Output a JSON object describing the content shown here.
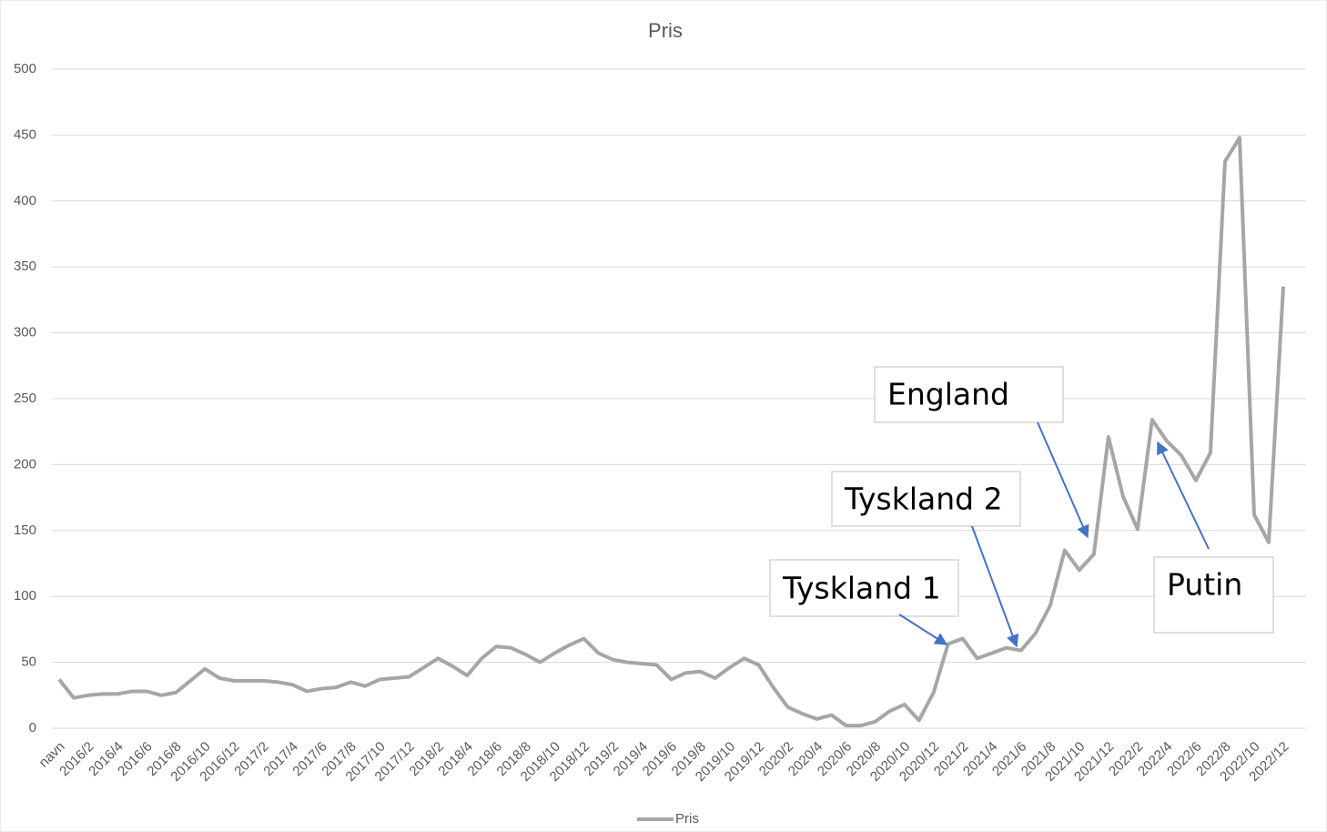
{
  "chart_data": {
    "type": "line",
    "title": "Pris",
    "categories": [
      "navn",
      null,
      "2016/2",
      null,
      "2016/4",
      null,
      "2016/6",
      null,
      "2016/8",
      null,
      "2016/10",
      null,
      "2016/12",
      null,
      "2017/2",
      null,
      "2017/4",
      null,
      "2017/6",
      null,
      "2017/8",
      null,
      "2017/10",
      null,
      "2017/12",
      null,
      "2018/2",
      null,
      "2018/4",
      null,
      "2018/6",
      null,
      "2018/8",
      null,
      "2018/10",
      null,
      "2018/12",
      null,
      "2019/2",
      null,
      "2019/4",
      null,
      "2019/6",
      null,
      "2019/8",
      null,
      "2019/10",
      null,
      "2019/12",
      null,
      "2020/2",
      null,
      "2020/4",
      null,
      "2020/6",
      null,
      "2020/8",
      null,
      "2020/10",
      null,
      "2020/12",
      null,
      "2021/2",
      null,
      "2021/4",
      null,
      "2021/6",
      null,
      "2021/8",
      null,
      "2021/10",
      null,
      "2021/12",
      null,
      "2022/2",
      null,
      "2022/4",
      null,
      "2022/6",
      null,
      "2022/8",
      null,
      "2022/10",
      null,
      "2022/12"
    ],
    "series": [
      {
        "name": "Pris",
        "color": "#a6a6a6",
        "values": [
          37,
          23,
          25,
          26,
          26,
          28,
          28,
          25,
          27,
          36,
          45,
          38,
          36,
          36,
          36,
          35,
          33,
          28,
          30,
          31,
          35,
          32,
          37,
          38,
          39,
          46,
          53,
          47,
          40,
          53,
          62,
          61,
          56,
          50,
          57,
          63,
          68,
          57,
          52,
          50,
          49,
          48,
          37,
          42,
          43,
          38,
          46,
          53,
          48,
          31,
          16,
          11,
          7,
          10,
          2,
          2,
          5,
          13,
          18,
          6,
          27,
          64,
          68,
          53,
          57,
          61,
          59,
          72,
          93,
          135,
          120,
          132,
          221,
          176,
          151,
          234,
          218,
          207,
          188,
          209,
          430,
          448,
          162,
          141,
          335
        ]
      }
    ],
    "ylim": [
      0,
      500
    ],
    "yticks": [
      0,
      50,
      100,
      150,
      200,
      250,
      300,
      350,
      400,
      450,
      500
    ],
    "grid": true,
    "legend": "bottom",
    "annotations": [
      {
        "text": "Tyskland 1"
      },
      {
        "text": "Tyskland 2"
      },
      {
        "text": "England"
      },
      {
        "text": "Putin"
      }
    ]
  }
}
